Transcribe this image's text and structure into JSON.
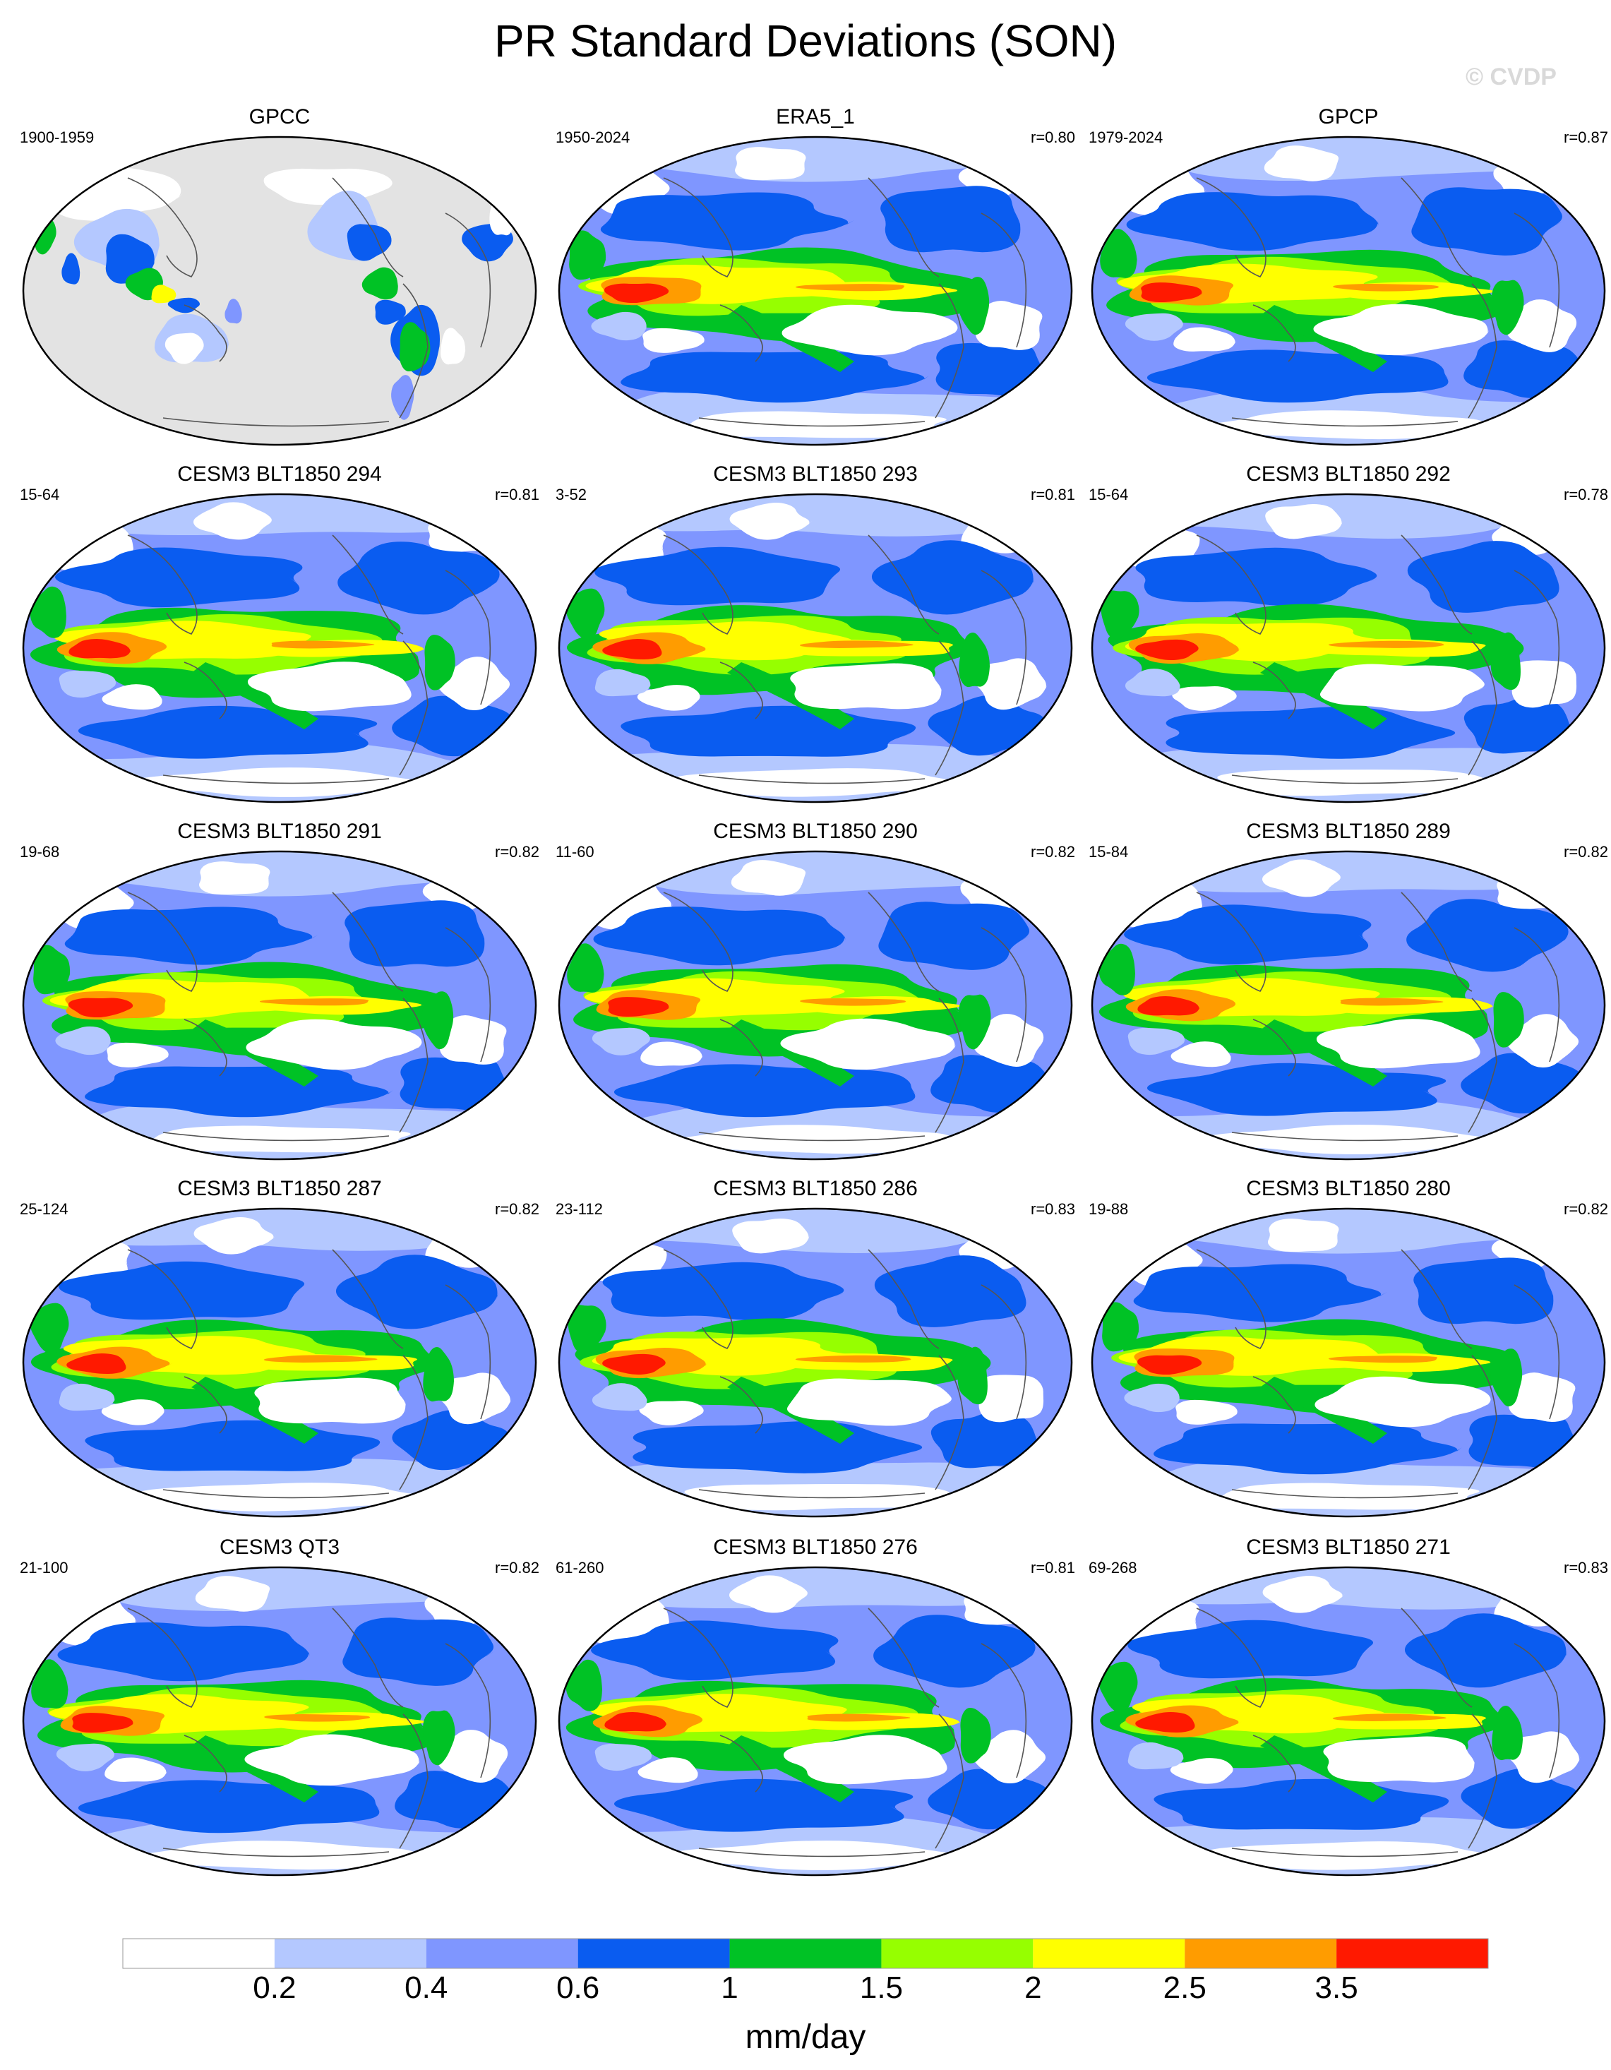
{
  "figure": {
    "title": "PR Standard Deviations (SON)",
    "watermark": "© CVDP"
  },
  "panels": [
    {
      "title": "GPCC",
      "years": "1900-1959",
      "r": "",
      "style": "gpcc"
    },
    {
      "title": "ERA5_1",
      "years": "1950-2024",
      "r": "r=0.80",
      "style": "obs"
    },
    {
      "title": "GPCP",
      "years": "1979-2024",
      "r": "r=0.87",
      "style": "obs"
    },
    {
      "title": "CESM3 BLT1850 294",
      "years": "15-64",
      "r": "r=0.81",
      "style": "model"
    },
    {
      "title": "CESM3 BLT1850 293",
      "years": "3-52",
      "r": "r=0.81",
      "style": "model"
    },
    {
      "title": "CESM3 BLT1850 292",
      "years": "15-64",
      "r": "r=0.78",
      "style": "model"
    },
    {
      "title": "CESM3 BLT1850 291",
      "years": "19-68",
      "r": "r=0.82",
      "style": "model"
    },
    {
      "title": "CESM3 BLT1850 290",
      "years": "11-60",
      "r": "r=0.82",
      "style": "model"
    },
    {
      "title": "CESM3 BLT1850 289",
      "years": "15-84",
      "r": "r=0.82",
      "style": "model"
    },
    {
      "title": "CESM3 BLT1850 287",
      "years": "25-124",
      "r": "r=0.82",
      "style": "model"
    },
    {
      "title": "CESM3 BLT1850 286",
      "years": "23-112",
      "r": "r=0.83",
      "style": "model"
    },
    {
      "title": "CESM3 BLT1850 280",
      "years": "19-88",
      "r": "r=0.82",
      "style": "model"
    },
    {
      "title": "CESM3 QT3",
      "years": "21-100",
      "r": "r=0.82",
      "style": "model"
    },
    {
      "title": "CESM3 BLT1850 276",
      "years": "61-260",
      "r": "r=0.81",
      "style": "model"
    },
    {
      "title": "CESM3 BLT1850 271",
      "years": "69-268",
      "r": "r=0.83",
      "style": "model"
    }
  ],
  "colorbar": {
    "colors": [
      "#ffffff",
      "#b4c8ff",
      "#7f96ff",
      "#0a5cf0",
      "#00c225",
      "#96ff00",
      "#ffff00",
      "#ff9c00",
      "#ff1900"
    ],
    "labels": [
      "0.2",
      "0.4",
      "0.6",
      "1",
      "1.5",
      "2",
      "2.5",
      "3.5"
    ],
    "units": "mm/day"
  },
  "colors": {
    "land_mask": "#e3e3e3",
    "coastline": "#555555",
    "map_border": "#000000"
  }
}
